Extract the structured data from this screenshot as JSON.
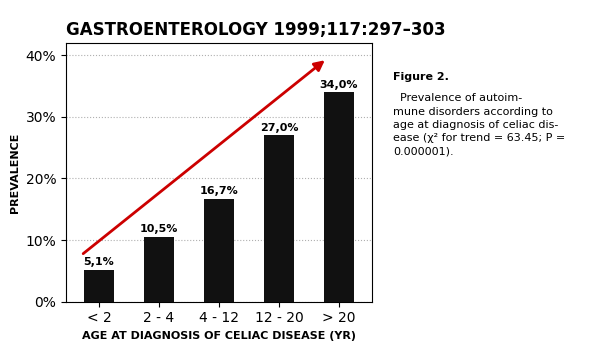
{
  "chart_data": {
    "type": "bar",
    "title": "GASTROENTEROLOGY 1999;117:297–303",
    "categories": [
      "< 2",
      "2 - 4",
      "4 - 12",
      "12 - 20",
      "> 20"
    ],
    "values": [
      5.1,
      10.5,
      16.7,
      27.0,
      34.0
    ],
    "value_labels": [
      "5,1%",
      "10,5%",
      "16,7%",
      "27,0%",
      "34,0%"
    ],
    "data_labels": true,
    "color": "#111111",
    "xlabel": "AGE AT DIAGNOSIS OF CELIAC DISEASE (YR)",
    "ylabel": "PREVALENCE",
    "ylim": [
      0,
      42
    ],
    "yticks": [
      {
        "value": 0,
        "label": "0%"
      },
      {
        "value": 10,
        "label": "10%"
      },
      {
        "value": 20,
        "label": "20%"
      },
      {
        "value": 30,
        "label": "30%"
      },
      {
        "value": 40,
        "label": "40%"
      }
    ],
    "grid": true,
    "arrow": {
      "start_x": -0.3,
      "start_y": 7.5,
      "end_x": 3.8,
      "end_y": 39.5,
      "color": "#cc0000"
    },
    "caption_title": "Figure 2.",
    "caption": "  Prevalence of autoim-\nmune disorders according to\nage at diagnosis of celiac dis-\nease (χ² for trend = 63.45; P =\n0.000001)."
  }
}
